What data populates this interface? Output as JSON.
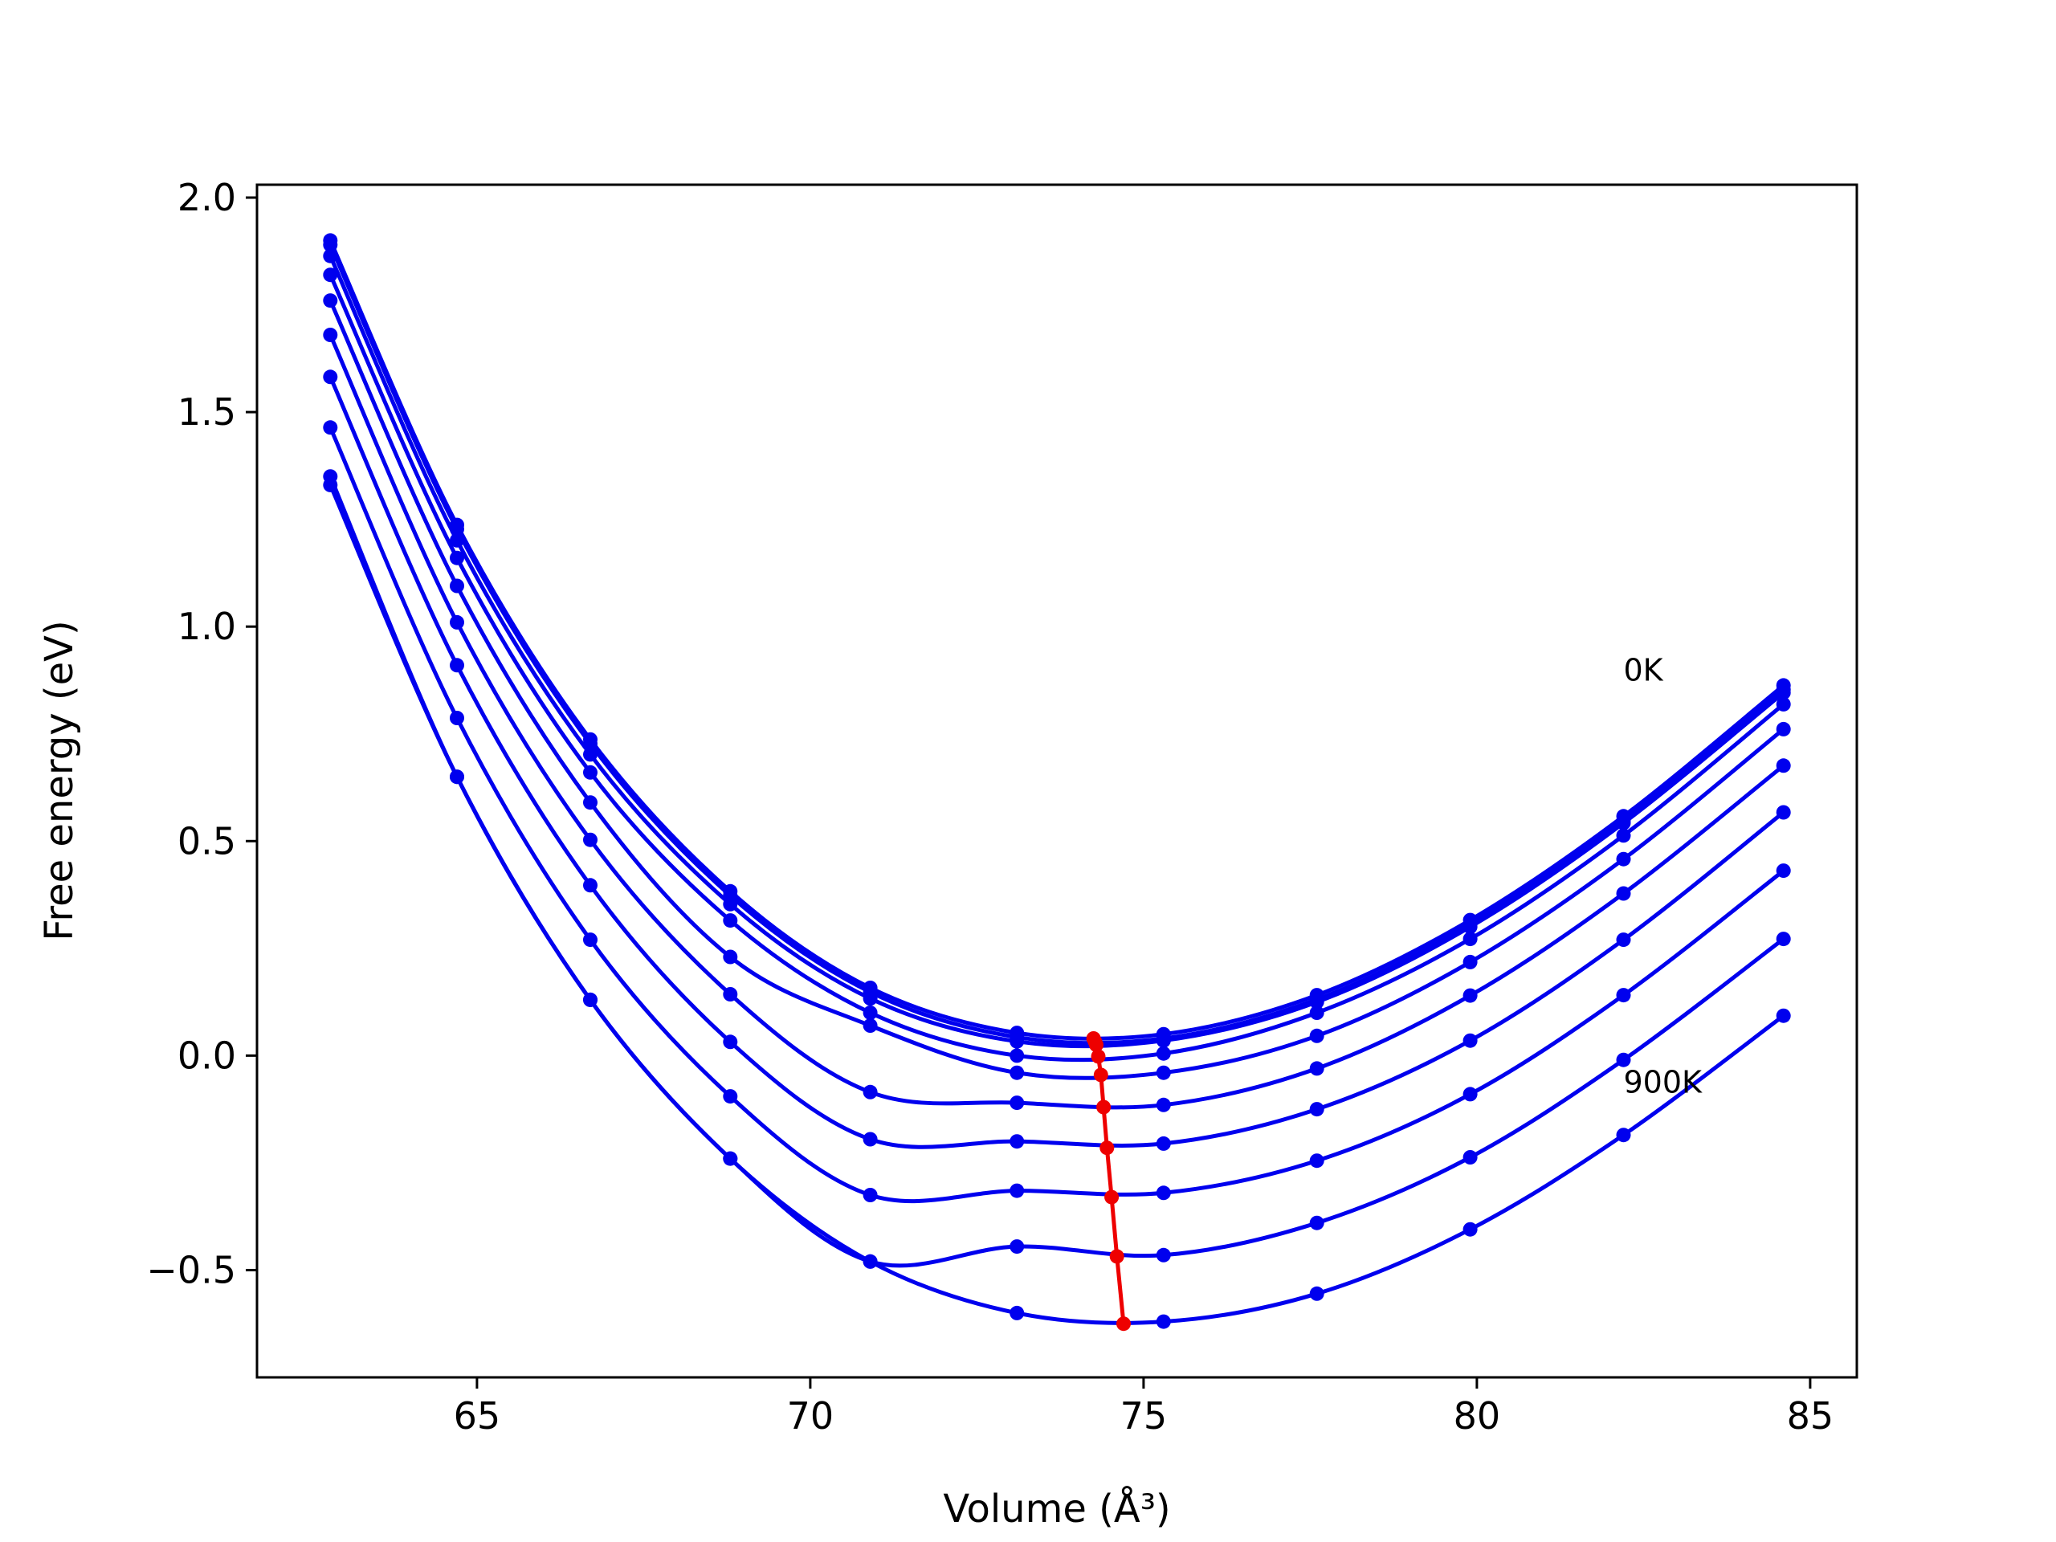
{
  "chart_data": {
    "type": "line",
    "title": "",
    "xlabel": "Volume (Å³)",
    "ylabel": "Free energy (eV)",
    "xlim": [
      61.7,
      85.7
    ],
    "ylim": [
      -0.75,
      2.03
    ],
    "xticks": [
      {
        "value": 65,
        "label": "65"
      },
      {
        "value": 70,
        "label": "70"
      },
      {
        "value": 75,
        "label": "75"
      },
      {
        "value": 80,
        "label": "80"
      },
      {
        "value": 85,
        "label": "85"
      }
    ],
    "yticks": [
      {
        "value": 2.0,
        "label": "2.0"
      },
      {
        "value": 1.5,
        "label": "1.5"
      },
      {
        "value": 1.0,
        "label": "1.0"
      },
      {
        "value": 0.5,
        "label": "0.5"
      },
      {
        "value": 0.0,
        "label": "0.0"
      },
      {
        "value": -0.5,
        "label": "−0.5"
      }
    ],
    "grid": false,
    "colors": {
      "curves": "#0000ee",
      "minima": "#ee0000"
    },
    "x": [
      62.8,
      64.7,
      66.7,
      68.8,
      70.9,
      73.1,
      75.3,
      77.6,
      79.9,
      82.2,
      84.6
    ],
    "series": [
      {
        "values": [
          1.9,
          1.237,
          0.737,
          0.383,
          0.158,
          0.053,
          0.05,
          0.141,
          0.316,
          0.558,
          0.863
        ]
      },
      {
        "values": [
          1.89,
          1.227,
          0.727,
          0.373,
          0.148,
          0.043,
          0.04,
          0.131,
          0.306,
          0.548,
          0.853
        ]
      },
      {
        "values": [
          1.864,
          1.201,
          0.702,
          0.353,
          0.133,
          0.033,
          0.035,
          0.125,
          0.3,
          0.542,
          0.846
        ]
      },
      {
        "values": [
          1.82,
          1.16,
          0.66,
          0.315,
          0.1,
          0.0,
          0.005,
          0.1,
          0.272,
          0.513,
          0.819
        ]
      },
      {
        "values": [
          1.76,
          1.095,
          0.59,
          0.23,
          0.07,
          -0.04,
          -0.04,
          0.046,
          0.218,
          0.458,
          0.761
        ]
      },
      {
        "values": [
          1.68,
          1.01,
          0.503,
          0.143,
          -0.085,
          -0.11,
          -0.115,
          -0.03,
          0.14,
          0.378,
          0.676
        ]
      },
      {
        "values": [
          1.582,
          0.91,
          0.397,
          0.032,
          -0.195,
          -0.2,
          -0.205,
          -0.125,
          0.035,
          0.27,
          0.567
        ]
      },
      {
        "values": [
          1.464,
          0.787,
          0.27,
          -0.095,
          -0.325,
          -0.315,
          -0.32,
          -0.245,
          -0.09,
          0.141,
          0.431
        ]
      },
      {
        "values": [
          1.33,
          0.65,
          0.13,
          -0.24,
          -0.48,
          -0.445,
          -0.465,
          -0.39,
          -0.237,
          -0.01,
          0.272
        ]
      },
      {
        "values": [
          1.35,
          0.65,
          0.13,
          -0.24,
          -0.48,
          -0.6,
          -0.62,
          -0.555,
          -0.405,
          -0.185,
          0.093
        ]
      }
    ],
    "minima": {
      "x": [
        74.25,
        74.27,
        74.29,
        74.32,
        74.36,
        74.4,
        74.45,
        74.52,
        74.6,
        74.7
      ],
      "y": [
        0.04,
        0.033,
        0.025,
        -0.002,
        -0.045,
        -0.12,
        -0.215,
        -0.33,
        -0.468,
        -0.625
      ]
    },
    "annotations": [
      {
        "text": "0K",
        "x": 82.2,
        "y": 0.9
      },
      {
        "text": "900K",
        "x": 82.2,
        "y": -0.06
      }
    ]
  }
}
